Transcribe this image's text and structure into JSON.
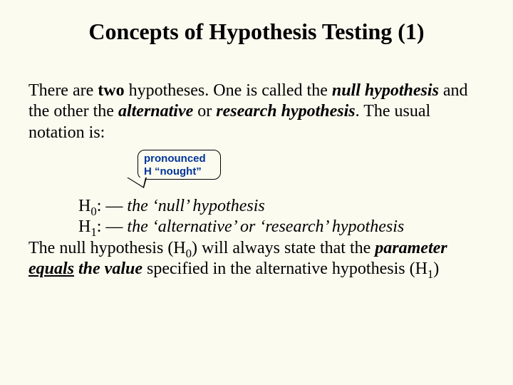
{
  "background_color": "#fbfbf0",
  "text_color": "#000000",
  "callout_text_color": "#003399",
  "fonts": {
    "body": "Times New Roman",
    "callout": "Arial"
  },
  "sizes": {
    "title_pt": 32,
    "body_pt": 24,
    "callout_pt": 15
  },
  "title": "Concepts of Hypothesis Testing (1)",
  "p1": {
    "t1": "There are ",
    "t2": "two",
    "t3": " hypotheses. One is called the ",
    "t4": "null hypothesis",
    "t5": " and the other the ",
    "t6": "alternative",
    "t7": " or ",
    "t8": "research hypothesis",
    "t9": ". The usual notation is:"
  },
  "callout": {
    "line1": "pronounced",
    "line2": "H “nought”"
  },
  "d1": {
    "h": "H",
    "sub": "0",
    "sep": ": — ",
    "t1": "the ‘null’ hypothesis"
  },
  "d2": {
    "h": "H",
    "sub": "1",
    "sep": ": — ",
    "t1": "the ‘alternative’ or ‘research’ hypothesis"
  },
  "p2": {
    "t1": "The null hypothesis (H",
    "sub1": "0",
    "t2": ") will always state that the ",
    "t3": "parameter",
    "t4": " ",
    "t5": "equals",
    "t6": " ",
    "t7": "the value",
    "t8": " specified in the alternative hypothesis (H",
    "sub2": "1",
    "t9": ")"
  }
}
